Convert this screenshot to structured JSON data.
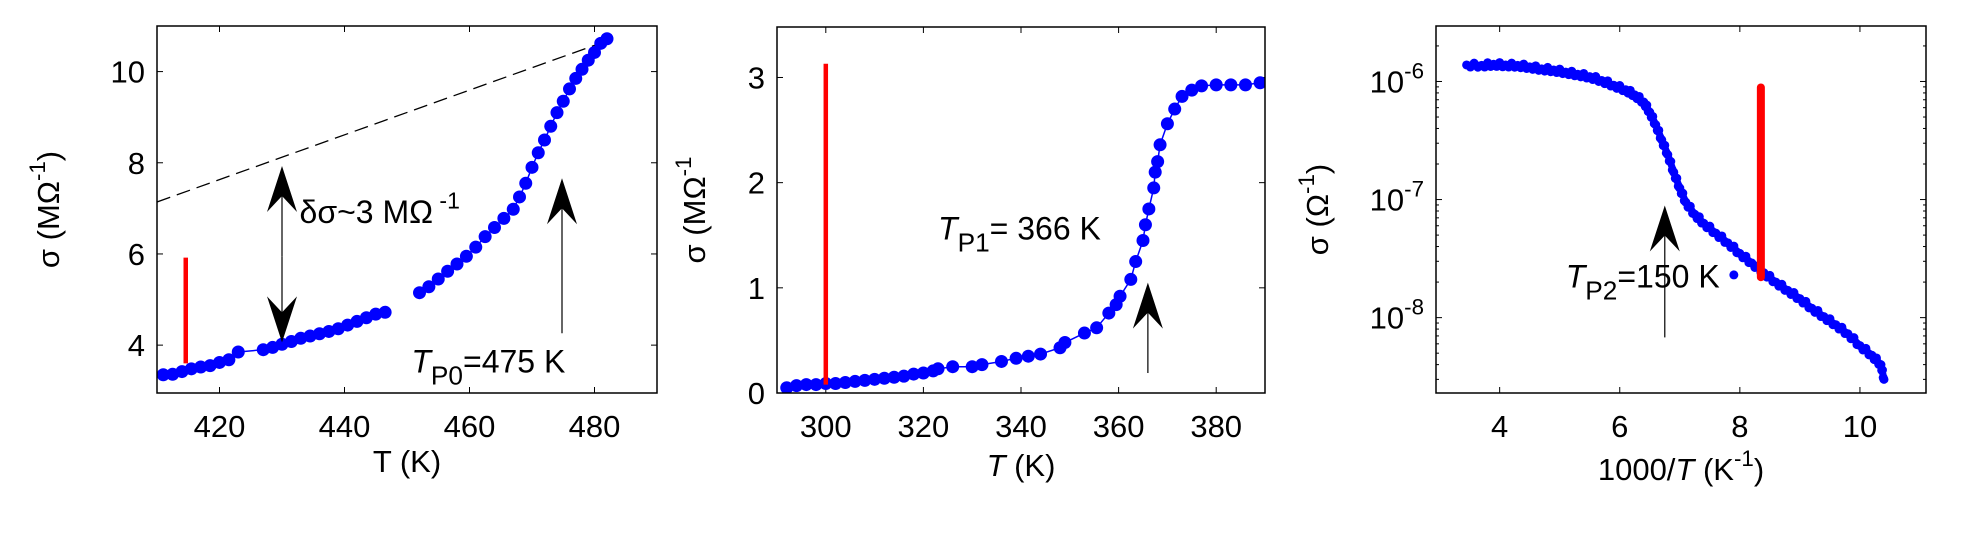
{
  "chart_data": [
    {
      "type": "scatter",
      "title": "",
      "xlabel": [
        {
          "t": "T (K)"
        }
      ],
      "ylabel": [
        {
          "t": "σ  (MΩ"
        },
        {
          "t": "-1",
          "sup": true
        },
        {
          "t": ")"
        }
      ],
      "xlim": [
        410,
        490
      ],
      "ylim": [
        2.95,
        11.0
      ],
      "yscale": "linear",
      "xticks": [
        420,
        440,
        460,
        480
      ],
      "xtick_labels": [
        "420",
        "440",
        "460",
        "480"
      ],
      "yticks": [
        4,
        6,
        8,
        10
      ],
      "ytick_labels": [
        [
          {
            "t": "4"
          }
        ],
        [
          {
            "t": "6"
          }
        ],
        [
          {
            "t": "8"
          }
        ],
        [
          {
            "t": "10"
          }
        ]
      ],
      "grid": false,
      "series": [
        {
          "name": "σ(T) low branch",
          "color": "#0000ff",
          "x": [
            411,
            412.5,
            414,
            415.5,
            417,
            418.5,
            420,
            421.5,
            423,
            427,
            428.5,
            430,
            431.5,
            433,
            434.5,
            436,
            437.5,
            439,
            440.5,
            442,
            443.5,
            445,
            446.5
          ],
          "y": [
            3.35,
            3.36,
            3.42,
            3.48,
            3.52,
            3.55,
            3.62,
            3.68,
            3.85,
            3.9,
            3.95,
            4.02,
            4.08,
            4.15,
            4.2,
            4.25,
            4.3,
            4.36,
            4.44,
            4.52,
            4.6,
            4.68,
            4.72
          ]
        },
        {
          "name": "σ(T) high branch",
          "color": "#0000ff",
          "x": [
            452,
            453.5,
            455,
            456.5,
            458,
            459.5,
            461,
            462.5,
            464,
            465.5,
            467,
            468,
            469,
            470,
            471,
            472,
            473,
            474,
            475,
            476,
            477,
            478,
            479,
            480,
            481,
            482
          ],
          "y": [
            5.15,
            5.28,
            5.45,
            5.62,
            5.78,
            5.95,
            6.15,
            6.38,
            6.58,
            6.78,
            6.98,
            7.25,
            7.55,
            7.9,
            8.22,
            8.5,
            8.8,
            9.1,
            9.35,
            9.62,
            9.85,
            10.05,
            10.25,
            10.42,
            10.62,
            10.72
          ]
        }
      ],
      "vlines": [
        {
          "x": 414.6,
          "y0": 3.6,
          "y1": 5.92,
          "color": "#ff0000"
        }
      ],
      "dashed_lines": [
        {
          "x": [
            410,
            480.5
          ],
          "y": [
            7.14,
            10.6
          ],
          "color": "#000000"
        }
      ],
      "arrows": [
        {
          "x": 430,
          "y0": 5.95,
          "y1": 7.93,
          "head": "end"
        },
        {
          "x": 430,
          "y0": 5.95,
          "y1": 4.06,
          "head": "end"
        },
        {
          "x": 474.8,
          "y0": 4.26,
          "y1": 7.66,
          "head": "end"
        }
      ],
      "annotations": [
        {
          "x": 432.8,
          "y": 6.68,
          "segs": [
            {
              "t": "δσ~3 MΩ"
            },
            {
              "t": " -1",
              "sup": true
            }
          ]
        },
        {
          "x": 450.7,
          "y": 3.4,
          "segs": [
            {
              "t": "T",
              "i": true
            },
            {
              "t": "P0",
              "sub": true
            },
            {
              "t": "=475 K"
            }
          ]
        }
      ]
    },
    {
      "type": "scatter",
      "title": "",
      "xlabel": [
        {
          "t": "T",
          "i": true
        },
        {
          "t": " (K)"
        }
      ],
      "ylabel": [
        {
          "t": "σ  (MΩ"
        },
        {
          "t": "-1",
          "sup": true
        }
      ],
      "xlim": [
        290,
        390
      ],
      "ylim": [
        0,
        3.48
      ],
      "yscale": "linear",
      "xticks": [
        300,
        320,
        340,
        360,
        380
      ],
      "xtick_labels": [
        "300",
        "320",
        "340",
        "360",
        "380"
      ],
      "yticks": [
        0,
        1,
        2,
        3
      ],
      "ytick_labels": [
        [
          {
            "t": "0"
          }
        ],
        [
          {
            "t": "1"
          }
        ],
        [
          {
            "t": "2"
          }
        ],
        [
          {
            "t": "3"
          }
        ]
      ],
      "grid": false,
      "series": [
        {
          "name": "σ(T)",
          "color": "#0000ff",
          "x": [
            292,
            294,
            296,
            298,
            300,
            302,
            304,
            306,
            308,
            310,
            312,
            314,
            316,
            318,
            320,
            322,
            323,
            326,
            330,
            332,
            336,
            339,
            341.5,
            344,
            348,
            349,
            353,
            355.5,
            358,
            359.5,
            360.3,
            362.5,
            363.5,
            365,
            365.5,
            366.2,
            367.2,
            367.5,
            368,
            368.5,
            370,
            371.5,
            373,
            375,
            377,
            380,
            383,
            386,
            389
          ],
          "y": [
            0.05,
            0.07,
            0.08,
            0.08,
            0.09,
            0.09,
            0.1,
            0.11,
            0.12,
            0.13,
            0.14,
            0.15,
            0.16,
            0.18,
            0.19,
            0.21,
            0.23,
            0.25,
            0.25,
            0.27,
            0.3,
            0.33,
            0.35,
            0.37,
            0.43,
            0.48,
            0.57,
            0.62,
            0.76,
            0.84,
            0.92,
            1.08,
            1.25,
            1.45,
            1.6,
            1.75,
            1.95,
            2.1,
            2.2,
            2.36,
            2.56,
            2.7,
            2.82,
            2.88,
            2.92,
            2.93,
            2.93,
            2.93,
            2.95
          ]
        }
      ],
      "vlines": [
        {
          "x": 300,
          "y0": 0.08,
          "y1": 3.13,
          "color": "#ff0000"
        }
      ],
      "dashed_lines": [],
      "arrows": [
        {
          "x": 366,
          "y0": 0.19,
          "y1": 1.05,
          "head": "end"
        }
      ],
      "annotations": [
        {
          "x": 323,
          "y": 1.46,
          "segs": [
            {
              "t": "T",
              "i": true
            },
            {
              "t": "P1",
              "sub": true
            },
            {
              "t": "= 366 K"
            }
          ]
        }
      ]
    },
    {
      "type": "scatter",
      "title": "",
      "xlabel": [
        {
          "t": "1000/"
        },
        {
          "t": "T",
          "i": true
        },
        {
          "t": " (K"
        },
        {
          "t": "-1",
          "sup": true
        },
        {
          "t": ")"
        }
      ],
      "ylabel": [
        {
          "t": "σ  (Ω"
        },
        {
          "t": "-1",
          "sup": true
        },
        {
          "t": ")"
        }
      ],
      "xlim": [
        2.94,
        11.1
      ],
      "ylim": [
        2.3e-09,
        2.95e-06
      ],
      "yscale": "log",
      "xticks": [
        4,
        6,
        8,
        10
      ],
      "xtick_labels": [
        "4",
        "6",
        "8",
        "10"
      ],
      "yticks": [
        1e-08,
        1e-07,
        1e-06
      ],
      "ytick_labels": [
        [
          {
            "t": "10"
          },
          {
            "t": "-8",
            "sup": true
          }
        ],
        [
          {
            "t": "10"
          },
          {
            "t": "-7",
            "sup": true
          }
        ],
        [
          {
            "t": "10"
          },
          {
            "t": "-6",
            "sup": true
          }
        ]
      ],
      "grid": false,
      "series": [
        {
          "name": "σ(1000/T)",
          "color": "#0000ff",
          "x": [
            3.45,
            3.7,
            3.9,
            4.1,
            4.3,
            4.5,
            4.7,
            4.9,
            5.1,
            5.3,
            5.5,
            5.7,
            5.9,
            6.1,
            6.25,
            6.4,
            6.5,
            6.6,
            6.7,
            6.8,
            6.9,
            7.0,
            7.1,
            7.25,
            7.4,
            7.6,
            7.8,
            8.0,
            8.2,
            8.4,
            8.6,
            8.8,
            9.0,
            9.2,
            9.4,
            9.6,
            9.8,
            10.0,
            10.2,
            10.35,
            10.4
          ],
          "y": [
            1.38e-06,
            1.37e-06,
            1.4e-06,
            1.38e-06,
            1.37e-06,
            1.33e-06,
            1.28e-06,
            1.25e-06,
            1.2e-06,
            1.15e-06,
            1.1e-06,
            1.02e-06,
            9.3e-07,
            8.5e-07,
            7.7e-07,
            6.7e-07,
            5.5e-07,
            4.3e-07,
            3.2e-07,
            2.4e-07,
            1.7e-07,
            1.25e-07,
            9.5e-08,
            7.5e-08,
            6.3e-08,
            5.2e-08,
            4.3e-08,
            3.5e-08,
            2.9e-08,
            2.4e-08,
            2e-08,
            1.7e-08,
            1.45e-08,
            1.2e-08,
            1.02e-08,
            8.7e-09,
            7.3e-09,
            5.8e-09,
            4.8e-09,
            4e-09,
            3e-09
          ]
        },
        {
          "name": "outlier",
          "color": "#0000ff",
          "x": [
            7.9
          ],
          "y": [
            2.3e-08
          ]
        }
      ],
      "vlines": [
        {
          "x": 8.35,
          "y0": 2.2e-08,
          "y1": 8.9e-07,
          "color": "#ff0000"
        }
      ],
      "dashed_lines": [],
      "arrows": [
        {
          "x": 6.75,
          "y0": 6.8e-09,
          "y1": 8.9e-08,
          "head": "end"
        }
      ],
      "annotations": [
        {
          "x": 5.1,
          "y": 1.8e-08,
          "segs": [
            {
              "t": "T",
              "i": true
            },
            {
              "t": "P2",
              "sub": true
            },
            {
              "t": "=150 K"
            }
          ]
        }
      ]
    }
  ]
}
